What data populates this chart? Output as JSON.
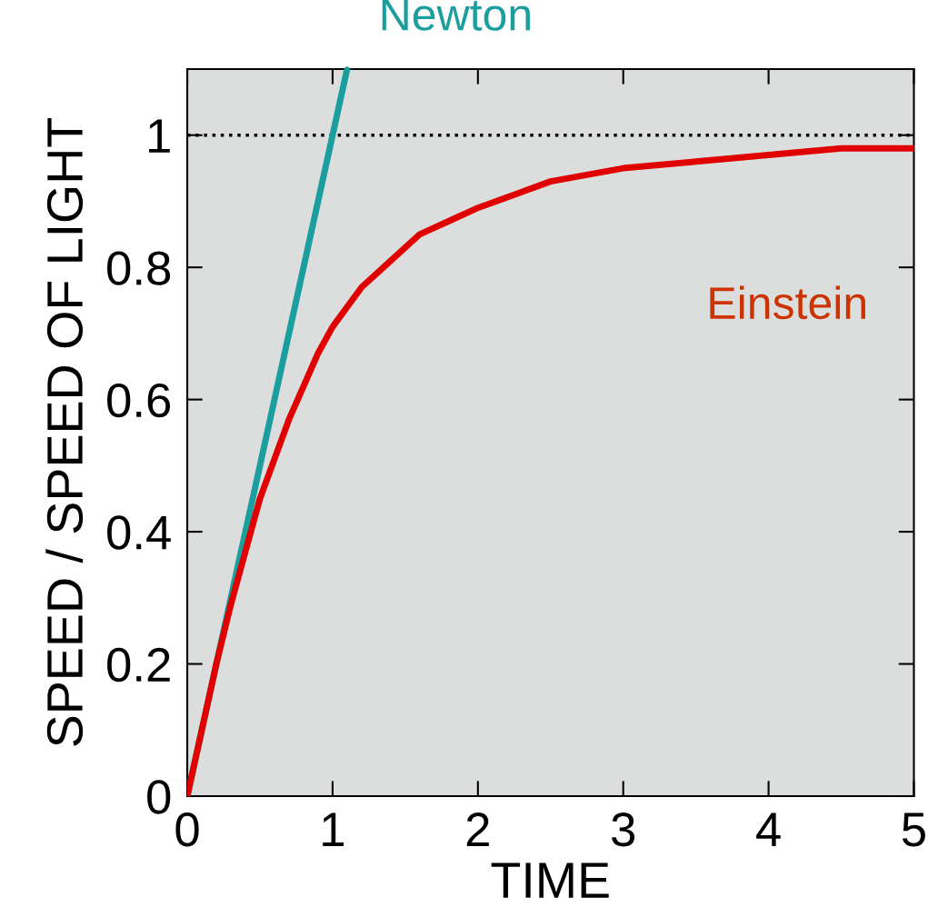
{
  "chart_data": {
    "type": "line",
    "xlabel": "TIME",
    "ylabel": "SPEED / SPEED OF LIGHT",
    "xlim": [
      0,
      5
    ],
    "ylim": [
      0,
      1.1
    ],
    "xticks": [
      0,
      1,
      2,
      3,
      4,
      5
    ],
    "yticks": [
      0,
      0.2,
      0.4,
      0.6,
      0.8,
      1
    ],
    "series": [
      {
        "name": "Newton",
        "color": "#1a9e9e",
        "x": [
          0,
          1.1
        ],
        "values": [
          0,
          1.1
        ]
      },
      {
        "name": "Einstein",
        "color": "#e00000",
        "x": [
          0,
          0.1,
          0.2,
          0.3,
          0.4,
          0.5,
          0.6,
          0.7,
          0.8,
          0.9,
          1.0,
          1.2,
          1.4,
          1.6,
          1.8,
          2.0,
          2.25,
          2.5,
          2.75,
          3,
          3.5,
          4,
          4.5,
          5
        ],
        "values": [
          0,
          0.1,
          0.2,
          0.29,
          0.37,
          0.45,
          0.51,
          0.57,
          0.62,
          0.67,
          0.71,
          0.77,
          0.81,
          0.85,
          0.87,
          0.89,
          0.91,
          0.93,
          0.94,
          0.95,
          0.96,
          0.97,
          0.98,
          0.98
        ]
      }
    ],
    "ref_lines": [
      {
        "axis": "y",
        "value": 1,
        "color": "#000000",
        "line_style": "dotted"
      }
    ],
    "grid": false,
    "legend": false,
    "marker": "none",
    "line_style": "solid"
  }
}
